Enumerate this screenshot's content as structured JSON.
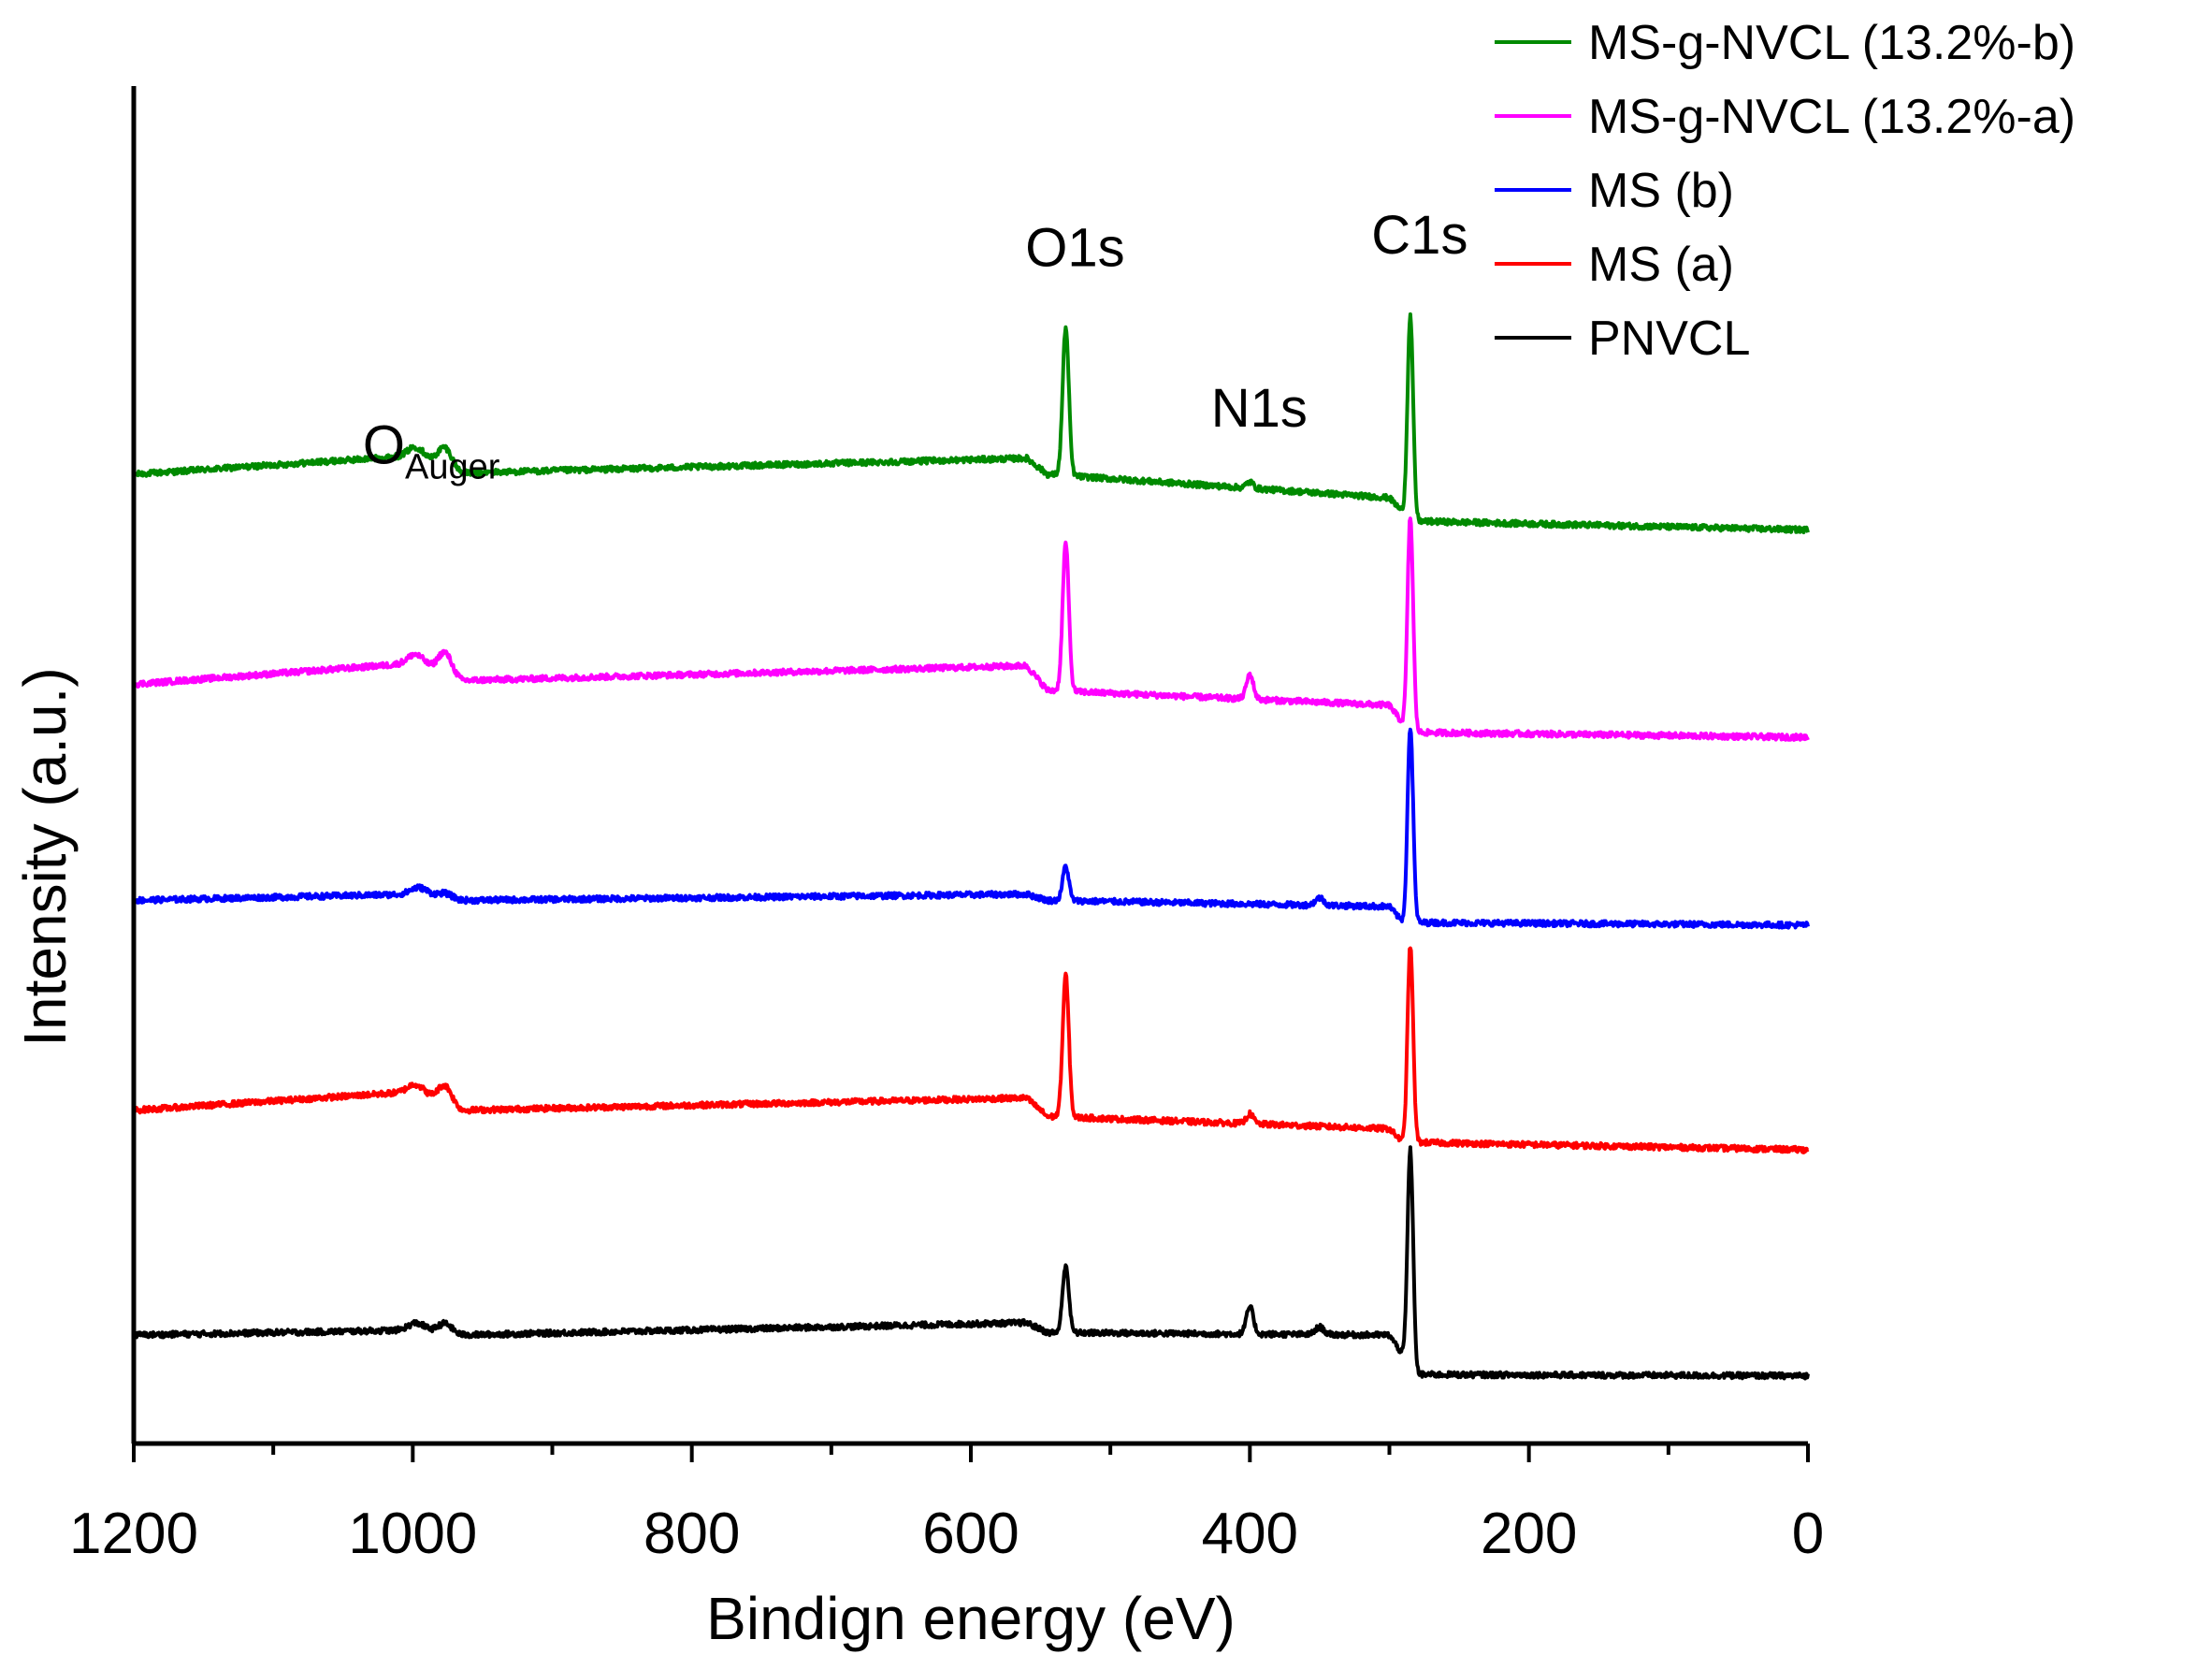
{
  "chart_data": {
    "type": "line",
    "title": "",
    "xlabel": "Bindign energy (eV)",
    "ylabel": "Intensity (a.u.)",
    "xlim": [
      1200,
      0
    ],
    "x_reversed": true,
    "x_ticks": [
      1200,
      1000,
      800,
      600,
      400,
      200,
      0
    ],
    "y_ticks_shown": false,
    "grid": false,
    "legend_position": "top-right",
    "y_units": "arbitrary offset (a.u.), 0-100 scale",
    "ylim": [
      0,
      100
    ],
    "annotations": [
      {
        "id": "o-auger",
        "text": "O",
        "subscript": "Auger",
        "x": 980,
        "y": 77
      },
      {
        "id": "o1s",
        "text": "O1s",
        "x": 532,
        "y": 93
      },
      {
        "id": "n1s",
        "text": "N1s",
        "x": 400,
        "y": 80
      },
      {
        "id": "c1s",
        "text": "C1s",
        "x": 285,
        "y": 94
      }
    ],
    "series": [
      {
        "name": "MS-g-NVCL (13.2%-b)",
        "color": "#008a00",
        "baseline": [
          [
            1200,
            77.5
          ],
          [
            1000,
            79.0
          ],
          [
            965,
            77.6
          ],
          [
            560,
            78.8
          ],
          [
            545,
            77.5
          ],
          [
            300,
            75.6
          ],
          [
            285,
            73.8
          ],
          [
            280,
            73.7
          ],
          [
            0,
            73.0
          ]
        ],
        "peaks": [
          {
            "x": 532,
            "h": 12.0,
            "w": 2.2
          },
          {
            "x": 977,
            "h": 1.6,
            "w": 5
          },
          {
            "x": 997,
            "h": 0.8,
            "w": 6
          },
          {
            "x": 400,
            "h": 0.5,
            "w": 2.5
          },
          {
            "x": 285,
            "h": 16.5,
            "w": 2.0
          }
        ]
      },
      {
        "name": "MS-g-NVCL (13.2%-a)",
        "color": "#ff00ff",
        "baseline": [
          [
            1200,
            60.5
          ],
          [
            1000,
            62.2
          ],
          [
            965,
            60.8
          ],
          [
            560,
            62.0
          ],
          [
            545,
            60.0
          ],
          [
            300,
            58.8
          ],
          [
            285,
            56.5
          ],
          [
            280,
            56.6
          ],
          [
            0,
            56.2
          ]
        ],
        "peaks": [
          {
            "x": 532,
            "h": 12.0,
            "w": 2.2
          },
          {
            "x": 977,
            "h": 1.8,
            "w": 5
          },
          {
            "x": 997,
            "h": 0.8,
            "w": 6
          },
          {
            "x": 400,
            "h": 2.0,
            "w": 2.5
          },
          {
            "x": 285,
            "h": 17.5,
            "w": 2.0
          }
        ]
      },
      {
        "name": "MS (b)",
        "color": "#0000ff",
        "baseline": [
          [
            1200,
            43.0
          ],
          [
            1000,
            43.5
          ],
          [
            965,
            43.0
          ],
          [
            560,
            43.5
          ],
          [
            545,
            43.0
          ],
          [
            300,
            42.5
          ],
          [
            285,
            40.5
          ],
          [
            280,
            41.2
          ],
          [
            0,
            41.0
          ]
        ],
        "peaks": [
          {
            "x": 532,
            "h": 2.8,
            "w": 2.2
          },
          {
            "x": 977,
            "h": 0.4,
            "w": 5
          },
          {
            "x": 995,
            "h": 0.6,
            "w": 6
          },
          {
            "x": 350,
            "h": 0.6,
            "w": 3
          },
          {
            "x": 285,
            "h": 16.5,
            "w": 2.0
          }
        ]
      },
      {
        "name": "MS (a)",
        "color": "#ff0000",
        "baseline": [
          [
            1200,
            26.0
          ],
          [
            1000,
            27.5
          ],
          [
            965,
            26.0
          ],
          [
            560,
            27.0
          ],
          [
            545,
            25.5
          ],
          [
            300,
            24.5
          ],
          [
            285,
            22.8
          ],
          [
            280,
            23.4
          ],
          [
            0,
            22.8
          ]
        ],
        "peaks": [
          {
            "x": 532,
            "h": 11.5,
            "w": 2.2
          },
          {
            "x": 977,
            "h": 1.5,
            "w": 5
          },
          {
            "x": 997,
            "h": 0.7,
            "w": 6
          },
          {
            "x": 400,
            "h": 0.8,
            "w": 2.5
          },
          {
            "x": 285,
            "h": 16.5,
            "w": 2.0
          }
        ]
      },
      {
        "name": "PNVCL",
        "color": "#000000",
        "baseline": [
          [
            1200,
            7.8
          ],
          [
            1000,
            8.2
          ],
          [
            965,
            7.8
          ],
          [
            560,
            8.8
          ],
          [
            545,
            8.0
          ],
          [
            300,
            7.8
          ],
          [
            285,
            5.3
          ],
          [
            280,
            4.6
          ],
          [
            0,
            4.5
          ]
        ],
        "peaks": [
          {
            "x": 532,
            "h": 5.5,
            "w": 2.2
          },
          {
            "x": 977,
            "h": 0.8,
            "w": 5
          },
          {
            "x": 997,
            "h": 0.6,
            "w": 6
          },
          {
            "x": 400,
            "h": 2.2,
            "w": 2.5
          },
          {
            "x": 350,
            "h": 0.6,
            "w": 3
          },
          {
            "x": 285,
            "h": 17.5,
            "w": 2.0
          }
        ]
      }
    ]
  }
}
